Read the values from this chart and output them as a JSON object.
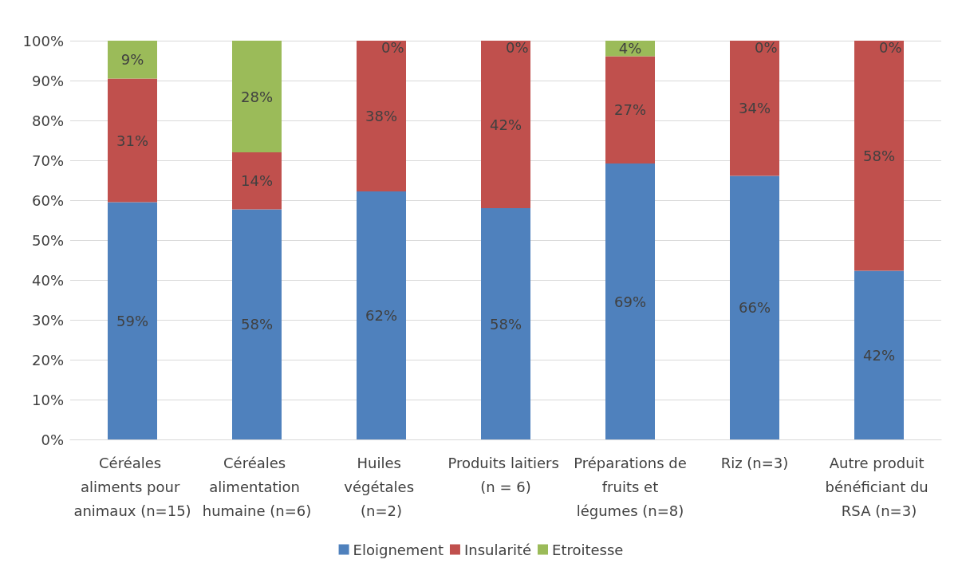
{
  "chart_data": {
    "type": "bar",
    "stacked": true,
    "categories": [
      "Céréales aliments pour animaux (n=15)",
      "Céréales alimentation humaine (n=6)",
      "Huiles végétales (n=2)",
      "Produits laitiers (n = 6)",
      "Préparations de fruits et légumes (n=8)",
      "Riz (n=3)",
      "Autre produit bénéficiant du RSA (n=3)"
    ],
    "series": [
      {
        "name": "Eloignement",
        "color": "#4f81bd",
        "values": [
          59.5,
          57.7,
          62.2,
          58,
          69.2,
          66.1,
          42.3
        ],
        "value_labels": [
          "59%",
          "58%",
          "62%",
          "58%",
          "69%",
          "66%",
          "42%"
        ]
      },
      {
        "name": "Insularité",
        "color": "#c0504d",
        "values": [
          31,
          14.3,
          37.8,
          42,
          26.9,
          33.9,
          57.7
        ],
        "value_labels": [
          "31%",
          "14%",
          "38%",
          "42%",
          "27%",
          "34%",
          "58%"
        ]
      },
      {
        "name": "Etroitesse",
        "color": "#9bbb59",
        "values": [
          9.5,
          28,
          0,
          0,
          3.9,
          0,
          0
        ],
        "value_labels": [
          "9%",
          "28%",
          "0%",
          "0%",
          "4%",
          "0%",
          "0%"
        ]
      }
    ],
    "ylim": [
      0,
      100
    ],
    "yticks": [
      {
        "value": 0,
        "label": "0%"
      },
      {
        "value": 10,
        "label": "10%"
      },
      {
        "value": 20,
        "label": "20%"
      },
      {
        "value": 30,
        "label": "30%"
      },
      {
        "value": 40,
        "label": "40%"
      },
      {
        "value": 50,
        "label": "50%"
      },
      {
        "value": 60,
        "label": "60%"
      },
      {
        "value": 70,
        "label": "70%"
      },
      {
        "value": 80,
        "label": "80%"
      },
      {
        "value": 90,
        "label": "90%"
      },
      {
        "value": 100,
        "label": "100%"
      }
    ],
    "grid": "y",
    "legend": "bottom"
  }
}
